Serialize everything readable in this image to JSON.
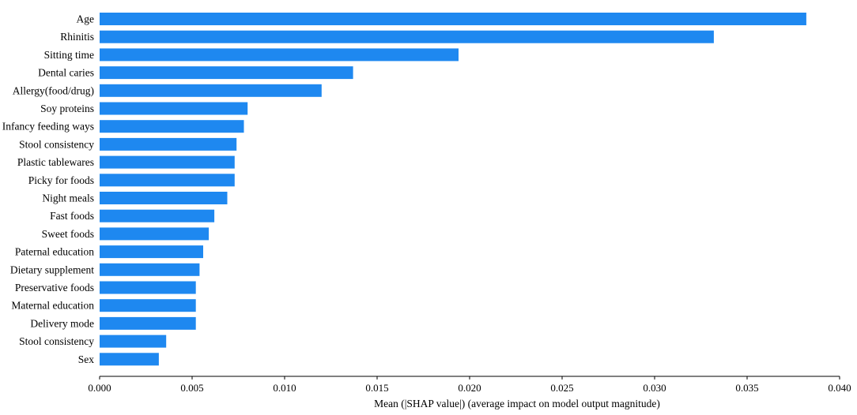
{
  "colors": {
    "bar": "#1e88f0",
    "axis": "#000000",
    "background": "#ffffff"
  },
  "chart_data": {
    "type": "bar",
    "orientation": "horizontal",
    "title": "",
    "xlabel": "Mean (|SHAP value|) (average impact on model output magnitude)",
    "ylabel": "",
    "xlim": [
      0.0,
      0.04
    ],
    "xticks": [
      "0.000",
      "0.005",
      "0.010",
      "0.015",
      "0.020",
      "0.025",
      "0.030",
      "0.035",
      "0.040"
    ],
    "grid": false,
    "categories": [
      "Age",
      "Rhinitis",
      "Sitting time",
      "Dental caries",
      "Allergy(food/drug)",
      "Soy proteins",
      "Infancy feeding ways",
      "Stool consistency",
      "Plastic tablewares",
      "Picky for foods",
      "Night meals",
      "Fast foods",
      "Sweet foods",
      "Paternal education",
      "Dietary supplement",
      "Preservative foods",
      "Maternal education",
      "Delivery mode",
      "Stool consistency",
      "Sex"
    ],
    "values": [
      0.0382,
      0.0332,
      0.0194,
      0.0137,
      0.012,
      0.008,
      0.0078,
      0.0074,
      0.0073,
      0.0073,
      0.0069,
      0.0062,
      0.0059,
      0.0056,
      0.0054,
      0.0052,
      0.0052,
      0.0052,
      0.0036,
      0.0032
    ]
  }
}
